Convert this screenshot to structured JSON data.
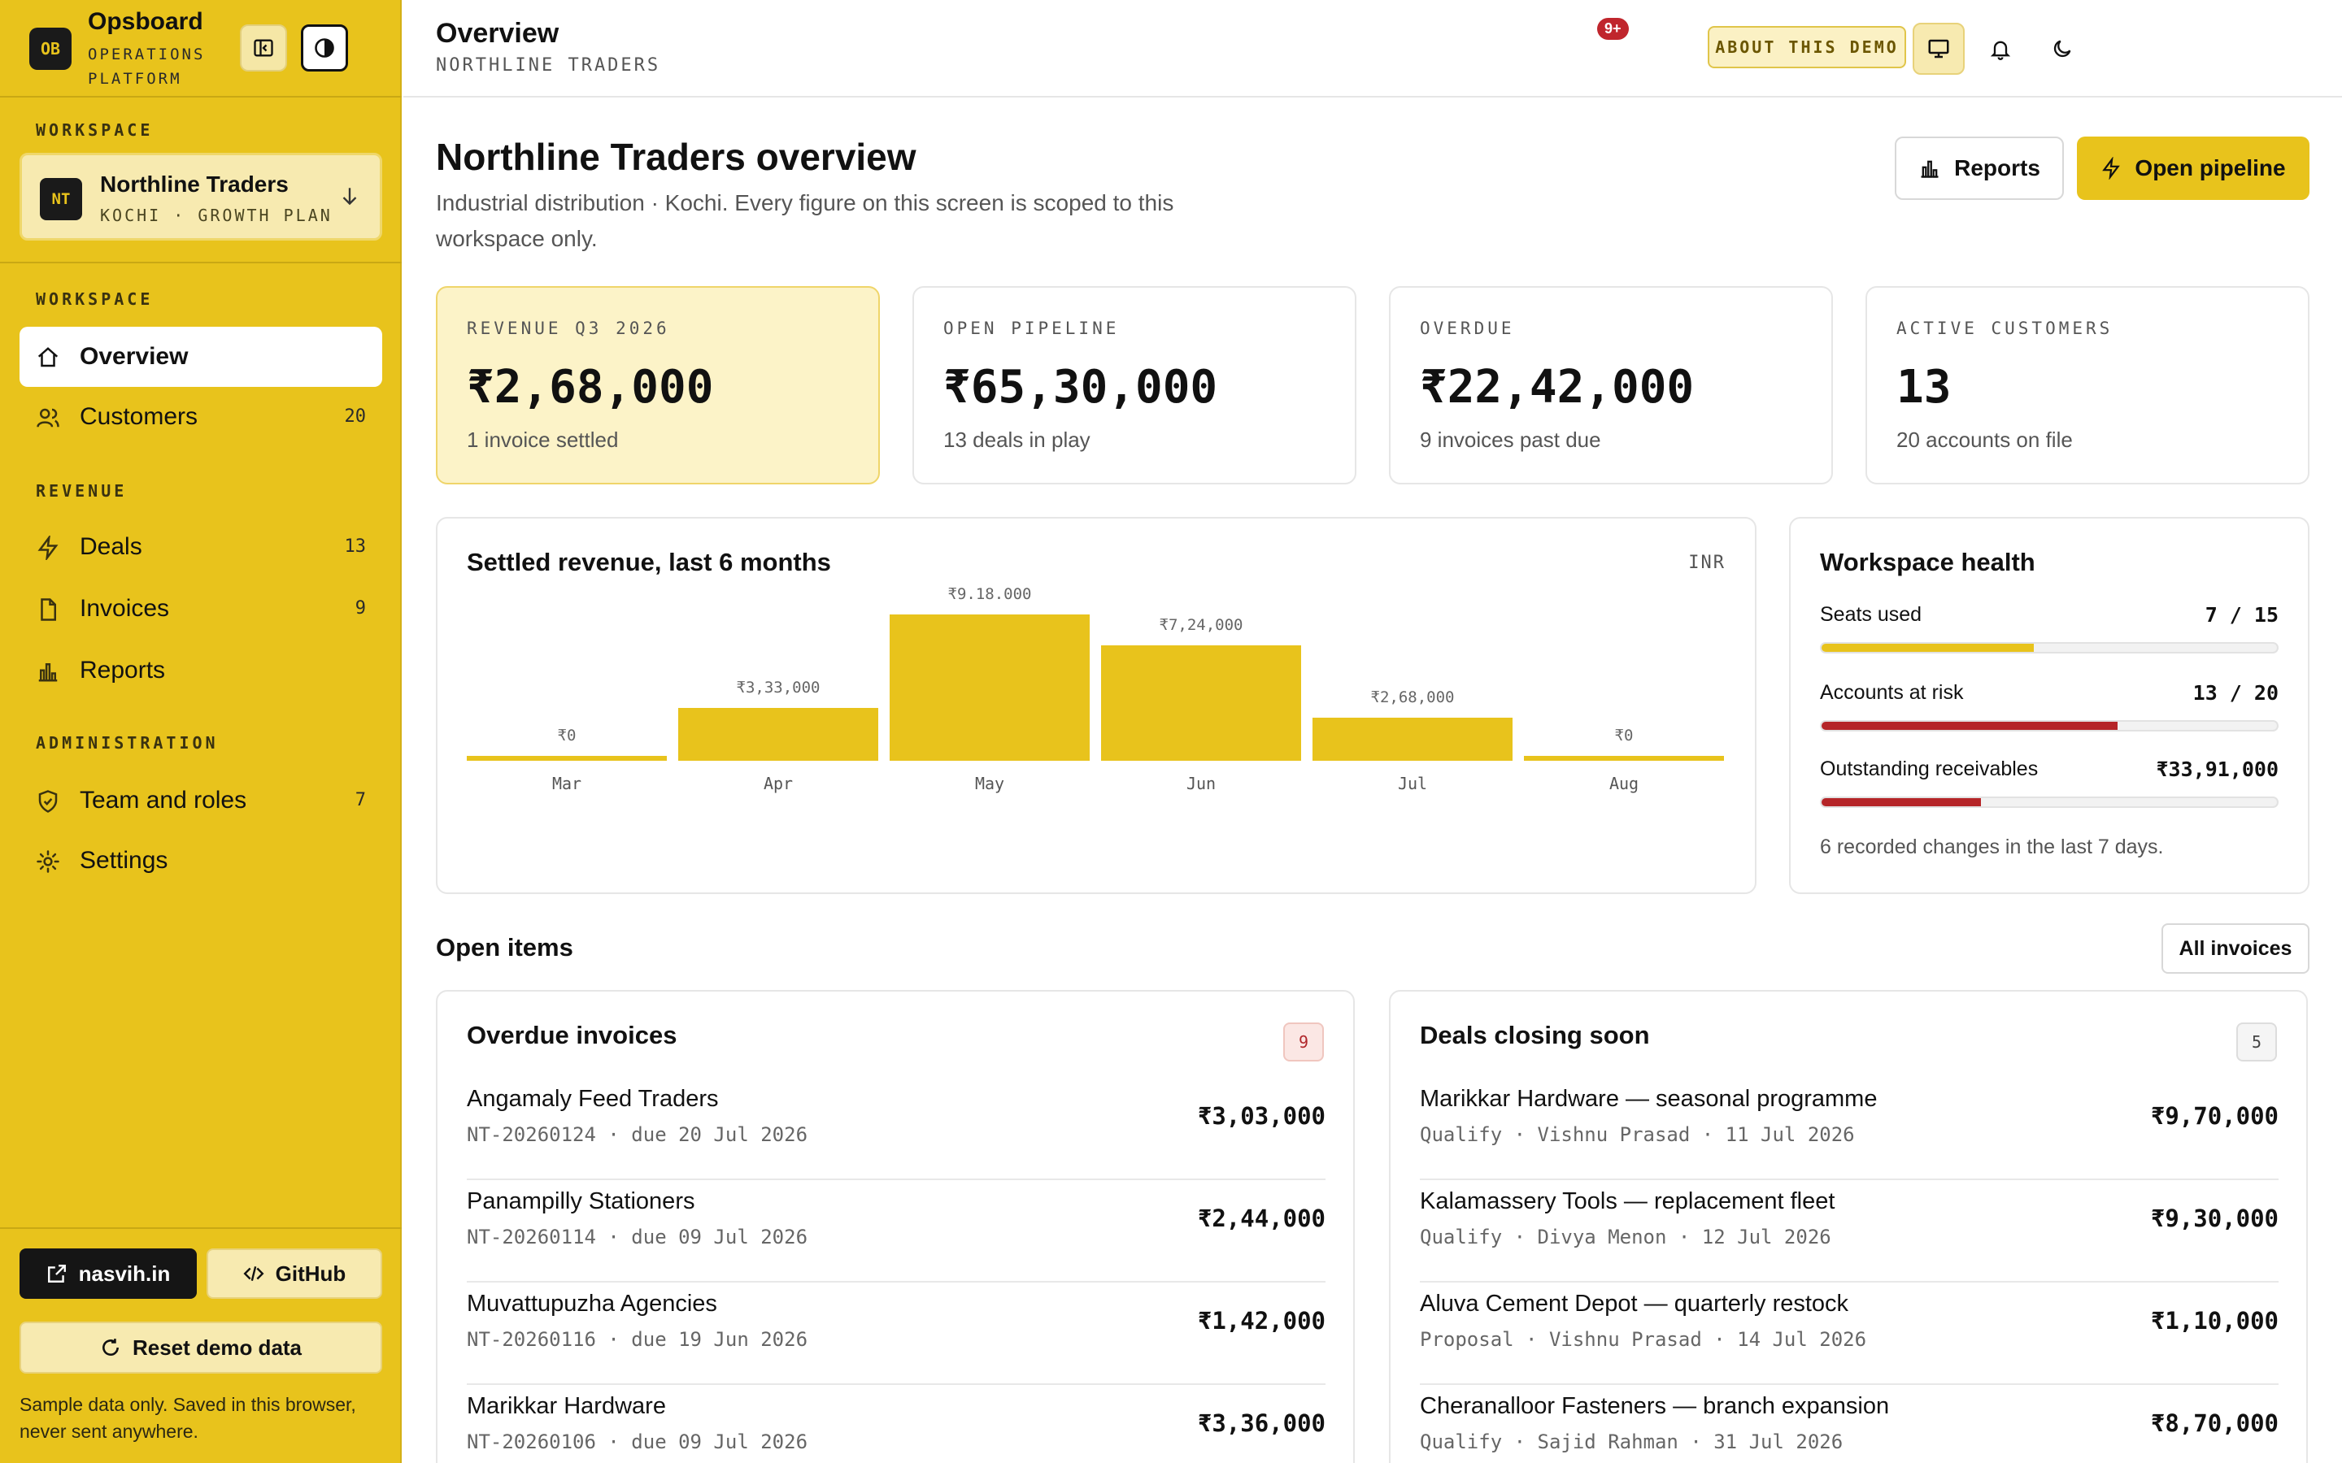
{
  "brand": {
    "logo": "OB",
    "name": "Opsboard",
    "subtitle": "OPERATIONS PLATFORM"
  },
  "sidebar": {
    "workspace_heading": "WORKSPACE",
    "workspace": {
      "logo": "NT",
      "name": "Northline Traders",
      "sub": "KOCHI · GROWTH PLAN"
    },
    "sections": [
      {
        "heading": "WORKSPACE",
        "items": [
          {
            "label": "Overview",
            "count": "",
            "icon": "home-icon",
            "active": true
          },
          {
            "label": "Customers",
            "count": "20",
            "icon": "users-icon"
          }
        ]
      },
      {
        "heading": "REVENUE",
        "items": [
          {
            "label": "Deals",
            "count": "13",
            "icon": "bolt-icon"
          },
          {
            "label": "Invoices",
            "count": "9",
            "icon": "file-icon"
          },
          {
            "label": "Reports",
            "count": "",
            "icon": "bar-chart-icon"
          }
        ]
      },
      {
        "heading": "ADMINISTRATION",
        "items": [
          {
            "label": "Team and roles",
            "count": "7",
            "icon": "shield-icon"
          },
          {
            "label": "Settings",
            "count": "",
            "icon": "gear-icon"
          }
        ]
      }
    ],
    "links": {
      "site": "nasvih.in",
      "github": "GitHub"
    },
    "reset_label": "Reset demo data",
    "note": "Sample data only. Saved in this browser, never sent anywhere."
  },
  "topbar": {
    "title": "Overview",
    "subtitle": "NORTHLINE TRADERS",
    "notification_badge": "9+",
    "about_label": "ABOUT THIS DEMO"
  },
  "main": {
    "heading": "Northline Traders overview",
    "description": "Industrial distribution · Kochi. Every figure on this screen is scoped to this workspace only.",
    "reports_button": "Reports",
    "pipeline_button": "Open pipeline",
    "stats": [
      {
        "label": "REVENUE Q3 2026",
        "value": "₹2,68,000",
        "sub": "1 invoice settled"
      },
      {
        "label": "OPEN PIPELINE",
        "value": "₹65,30,000",
        "sub": "13 deals in play"
      },
      {
        "label": "OVERDUE",
        "value": "₹22,42,000",
        "sub": "9 invoices past due"
      },
      {
        "label": "ACTIVE CUSTOMERS",
        "value": "13",
        "sub": "20 accounts on file"
      }
    ],
    "revenue_chart": {
      "title": "Settled revenue, last 6 months",
      "currency": "INR"
    },
    "health": {
      "title": "Workspace health",
      "rows": [
        {
          "label": "Seats used",
          "value": "7 / 15",
          "fraction": 0.4667,
          "color": "#e8c31c"
        },
        {
          "label": "Accounts at risk",
          "value": "13 / 20",
          "fraction": 0.65,
          "color": "#b52528"
        },
        {
          "label": "Outstanding receivables",
          "value": "₹33,91,000",
          "fraction": 0.35,
          "color": "#b52528"
        }
      ],
      "note": "6 recorded changes in the last 7 days."
    },
    "open_items": {
      "heading": "Open items",
      "all_invoices": "All invoices",
      "overdue": {
        "title": "Overdue invoices",
        "count": "9",
        "rows": [
          {
            "name": "Angamaly Feed Traders",
            "meta": "NT-20260124 · due 20 Jul 2026",
            "amount": "₹3,03,000"
          },
          {
            "name": "Panampilly Stationers",
            "meta": "NT-20260114 · due 09 Jul 2026",
            "amount": "₹2,44,000"
          },
          {
            "name": "Muvattupuzha Agencies",
            "meta": "NT-20260116 · due 19 Jun 2026",
            "amount": "₹1,42,000"
          },
          {
            "name": "Marikkar Hardware",
            "meta": "NT-20260106 · due 09 Jul 2026",
            "amount": "₹3,36,000"
          }
        ]
      },
      "deals": {
        "title": "Deals closing soon",
        "count": "5",
        "rows": [
          {
            "name": "Marikkar Hardware — seasonal programme",
            "meta": "Qualify · Vishnu Prasad · 11 Jul 2026",
            "amount": "₹9,70,000"
          },
          {
            "name": "Kalamassery Tools — replacement fleet",
            "meta": "Qualify · Divya Menon · 12 Jul 2026",
            "amount": "₹9,30,000"
          },
          {
            "name": "Aluva Cement Depot — quarterly restock",
            "meta": "Proposal · Vishnu Prasad · 14 Jul 2026",
            "amount": "₹1,10,000"
          },
          {
            "name": "Cheranalloor Fasteners — branch expansion",
            "meta": "Qualify · Sajid Rahman · 31 Jul 2026",
            "amount": "₹8,70,000"
          }
        ]
      }
    }
  },
  "chart_data": {
    "type": "bar",
    "title": "Settled revenue, last 6 months",
    "categories": [
      "Mar",
      "Apr",
      "May",
      "Jun",
      "Jul",
      "Aug"
    ],
    "values": [
      0,
      333000,
      918000,
      724000,
      268000,
      0
    ],
    "value_labels": [
      "₹0",
      "₹3,33,000",
      "₹9.18.000",
      "₹7,24,000",
      "₹2,68,000",
      "₹0"
    ],
    "unit": "INR",
    "color": "#e8c31c"
  }
}
